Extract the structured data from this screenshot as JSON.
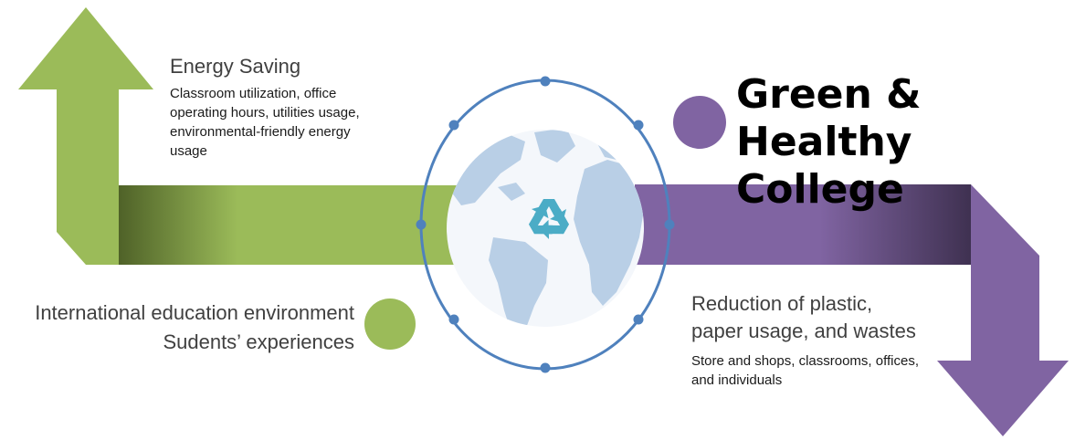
{
  "title": {
    "line1": "Green & Healthy",
    "line2": "College"
  },
  "energy_saving": {
    "heading": "Energy Saving",
    "details": [
      "Classroom utilization, office",
      "operating hours, utilities usage,",
      "environmental-friendly energy",
      "usage"
    ]
  },
  "international": {
    "lines": [
      "International education environment",
      "Sudents’ experiences"
    ]
  },
  "reduction": {
    "heading_lines": [
      "Reduction of plastic,",
      "paper usage, and wastes"
    ],
    "details": [
      "Store and shops, classrooms, offices,",
      "and individuals"
    ]
  },
  "colors": {
    "green": "#9bbb59",
    "green_dark": "#4f6228",
    "purple": "#8064a2",
    "purple_dark": "#3f3151",
    "globe_ring": "#4f81bd",
    "globe_ocean": "#f4f7fb",
    "globe_land": "#b9cfe6",
    "recycle": "#4bacc6"
  },
  "icons": {
    "center": "recycle-icon",
    "globe": "globe-icon"
  }
}
